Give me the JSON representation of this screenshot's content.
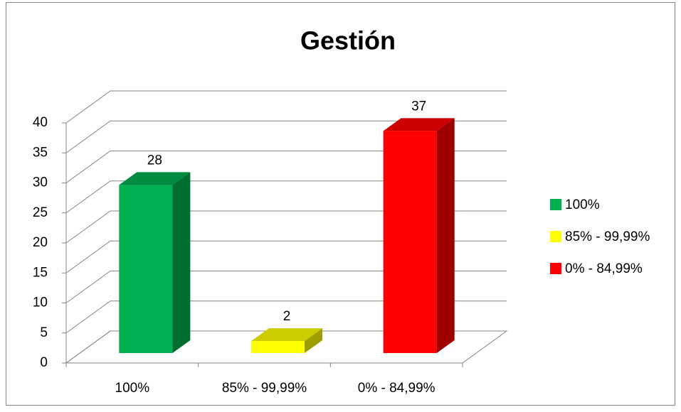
{
  "chart_data": {
    "type": "bar3d",
    "title": "Gestión",
    "categories": [
      "100%",
      "85% - 99,99%",
      "0% - 84,99%"
    ],
    "values": [
      28,
      2,
      37
    ],
    "colors": [
      "#00b050",
      "#ffff00",
      "#ff0000"
    ],
    "ylim": [
      0,
      40
    ],
    "yticks": [
      0,
      5,
      10,
      15,
      20,
      25,
      30,
      35,
      40
    ],
    "grid": true,
    "legend": "right"
  }
}
